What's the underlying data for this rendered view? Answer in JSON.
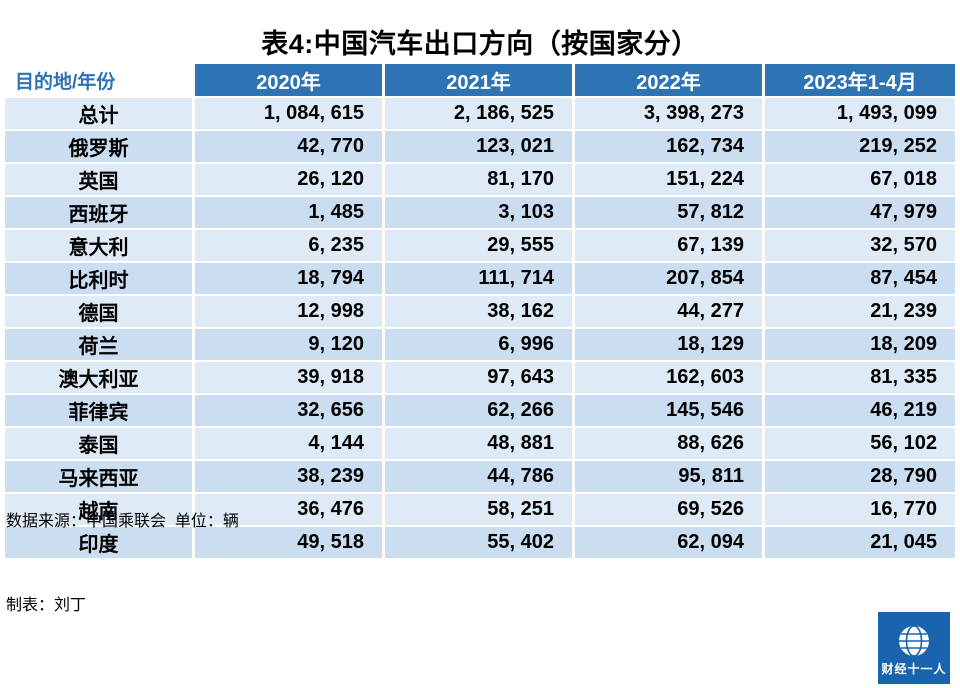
{
  "title": "表4:中国汽车出口方向（按国家分）",
  "chart_data": {
    "type": "table",
    "title": "表4:中国汽车出口方向（按国家分）",
    "columns": [
      "目的地/年份",
      "2020年",
      "2021年",
      "2022年",
      "2023年1-4月"
    ],
    "rows": [
      [
        "总计",
        1084615,
        2186525,
        3398273,
        1493099
      ],
      [
        "俄罗斯",
        42770,
        123021,
        162734,
        219252
      ],
      [
        "英国",
        26120,
        81170,
        151224,
        67018
      ],
      [
        "西班牙",
        1485,
        3103,
        57812,
        47979
      ],
      [
        "意大利",
        6235,
        29555,
        67139,
        32570
      ],
      [
        "比利时",
        18794,
        111714,
        207854,
        87454
      ],
      [
        "德国",
        12998,
        38162,
        44277,
        21239
      ],
      [
        "荷兰",
        9120,
        6996,
        18129,
        18209
      ],
      [
        "澳大利亚",
        39918,
        97643,
        162603,
        81335
      ],
      [
        "菲律宾",
        32656,
        62266,
        145546,
        46219
      ],
      [
        "泰国",
        4144,
        48881,
        88626,
        56102
      ],
      [
        "马来西亚",
        38239,
        44786,
        95811,
        28790
      ],
      [
        "越南",
        36476,
        58251,
        69526,
        16770
      ],
      [
        "印度",
        49518,
        55402,
        62094,
        21045
      ]
    ],
    "unit": "辆",
    "number_format": "comma-space"
  },
  "footer": {
    "source": "数据来源：中国乘联会  单位：辆",
    "author": "制表：刘丁"
  },
  "logo": {
    "text": "财经十一人"
  },
  "colors": {
    "header_bg": "#2E74B5",
    "header_fg": "#FFFFFF",
    "corner_fg": "#2E74B5",
    "row_light": "#DEEBF7",
    "row_dark": "#CBDEF1",
    "logo_bg": "#1A63AE",
    "text": "#000000"
  }
}
